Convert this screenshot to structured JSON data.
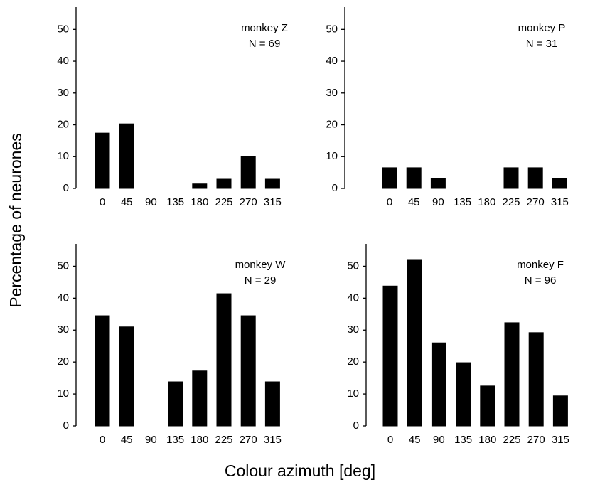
{
  "ylabel": "Percentage of neurones",
  "xlabel": "Colour azimuth [deg]",
  "chart_data": [
    {
      "type": "bar",
      "title": "monkey Z",
      "annotation": "N = 69",
      "color": "#000000",
      "categories": [
        "0",
        "45",
        "90",
        "135",
        "180",
        "225",
        "270",
        "315"
      ],
      "values": [
        17.4,
        20.3,
        0,
        0,
        1.4,
        2.9,
        10.1,
        2.9
      ],
      "ylim": [
        0,
        57
      ],
      "yticks": [
        0,
        10,
        20,
        30,
        40,
        50
      ]
    },
    {
      "type": "bar",
      "title": "monkey P",
      "annotation": "N = 31",
      "color": "#000000",
      "categories": [
        "0",
        "45",
        "90",
        "135",
        "180",
        "225",
        "270",
        "315"
      ],
      "values": [
        6.5,
        6.5,
        3.2,
        0,
        0,
        6.5,
        6.5,
        3.2
      ],
      "ylim": [
        0,
        57
      ],
      "yticks": [
        0,
        10,
        20,
        30,
        40,
        50
      ]
    },
    {
      "type": "bar",
      "title": "monkey W",
      "annotation": "N = 29",
      "color": "#000000",
      "categories": [
        "0",
        "45",
        "90",
        "135",
        "180",
        "225",
        "270",
        "315"
      ],
      "values": [
        34.5,
        31.0,
        0,
        13.8,
        17.2,
        41.4,
        34.5,
        13.8
      ],
      "ylim": [
        0,
        57
      ],
      "yticks": [
        0,
        10,
        20,
        30,
        40,
        50
      ]
    },
    {
      "type": "bar",
      "title": "monkey F",
      "annotation": "N = 96",
      "color": "#000000",
      "categories": [
        "0",
        "45",
        "90",
        "135",
        "180",
        "225",
        "270",
        "315"
      ],
      "values": [
        43.8,
        52.1,
        26.0,
        19.8,
        12.5,
        32.3,
        29.2,
        9.4
      ],
      "ylim": [
        0,
        57
      ],
      "yticks": [
        0,
        10,
        20,
        30,
        40,
        50
      ]
    }
  ]
}
